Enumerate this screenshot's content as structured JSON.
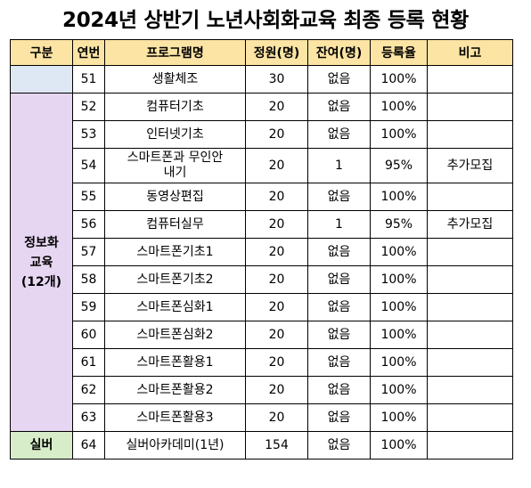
{
  "title": "2024년 상반기 노년사회화교육 최종 등록 현황",
  "headers": [
    "구분",
    "연번",
    "프로그램명",
    "정원(명)",
    "잔여(명)",
    "등록율",
    "비고"
  ],
  "categories": {
    "blank": "",
    "info_line1": "정보화",
    "info_line2": "교육",
    "info_line3": "(12개)",
    "silver": "실버"
  },
  "rows": [
    {
      "no": "51",
      "name": "생활체조",
      "capacity": "30",
      "remaining": "없음",
      "rate": "100%",
      "note": ""
    },
    {
      "no": "52",
      "name": "컴퓨터기초",
      "capacity": "20",
      "remaining": "없음",
      "rate": "100%",
      "note": ""
    },
    {
      "no": "53",
      "name": "인터넷기초",
      "capacity": "20",
      "remaining": "없음",
      "rate": "100%",
      "note": ""
    },
    {
      "no": "54",
      "name": "스마트폰과 무인안내기",
      "name_line1": "스마트폰과 무인안",
      "name_line2": "내기",
      "capacity": "20",
      "remaining": "1",
      "rate": "95%",
      "note": "추가모집"
    },
    {
      "no": "55",
      "name": "동영상편집",
      "capacity": "20",
      "remaining": "없음",
      "rate": "100%",
      "note": ""
    },
    {
      "no": "56",
      "name": "컴퓨터실무",
      "capacity": "20",
      "remaining": "1",
      "rate": "95%",
      "note": "추가모집"
    },
    {
      "no": "57",
      "name": "스마트폰기초1",
      "capacity": "20",
      "remaining": "없음",
      "rate": "100%",
      "note": ""
    },
    {
      "no": "58",
      "name": "스마트폰기초2",
      "capacity": "20",
      "remaining": "없음",
      "rate": "100%",
      "note": ""
    },
    {
      "no": "59",
      "name": "스마트폰심화1",
      "capacity": "20",
      "remaining": "없음",
      "rate": "100%",
      "note": ""
    },
    {
      "no": "60",
      "name": "스마트폰심화2",
      "capacity": "20",
      "remaining": "없음",
      "rate": "100%",
      "note": ""
    },
    {
      "no": "61",
      "name": "스마트폰활용1",
      "capacity": "20",
      "remaining": "없음",
      "rate": "100%",
      "note": ""
    },
    {
      "no": "62",
      "name": "스마트폰활용2",
      "capacity": "20",
      "remaining": "없음",
      "rate": "100%",
      "note": ""
    },
    {
      "no": "63",
      "name": "스마트폰활용3",
      "capacity": "20",
      "remaining": "없음",
      "rate": "100%",
      "note": ""
    },
    {
      "no": "64",
      "name": "실버아카데미(1년)",
      "capacity": "154",
      "remaining": "없음",
      "rate": "100%",
      "note": ""
    }
  ],
  "colors": {
    "header_bg": "#fce4a4",
    "category_blank_bg": "#dde8f4",
    "category_info_bg": "#e7d6f1",
    "category_silver_bg": "#d7ecc9"
  }
}
